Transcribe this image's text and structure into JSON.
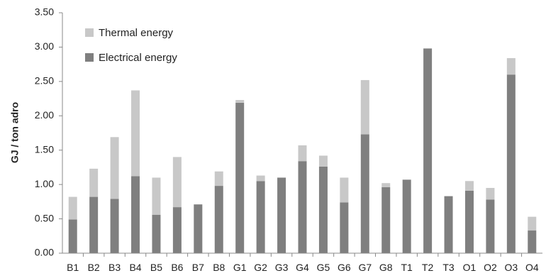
{
  "chart_data": {
    "type": "bar",
    "stacked": true,
    "categories": [
      "B1",
      "B2",
      "B3",
      "B4",
      "B5",
      "B6",
      "B7",
      "B8",
      "G1",
      "G2",
      "G3",
      "G4",
      "G5",
      "G6",
      "G7",
      "G8",
      "T1",
      "T2",
      "T3",
      "O1",
      "O2",
      "O3",
      "O4"
    ],
    "series": [
      {
        "name": "Electrical energy",
        "color": "#7f7f7f",
        "values": [
          0.49,
          0.82,
          0.79,
          1.12,
          0.56,
          0.67,
          0.71,
          0.98,
          2.19,
          1.05,
          1.1,
          1.34,
          1.26,
          0.74,
          1.73,
          0.96,
          1.07,
          2.98,
          0.83,
          0.91,
          0.78,
          2.6,
          0.33
        ]
      },
      {
        "name": "Thermal energy",
        "color": "#c8c8c8",
        "values": [
          0.33,
          0.41,
          0.9,
          1.25,
          0.54,
          0.73,
          0.0,
          0.21,
          0.04,
          0.08,
          0.0,
          0.23,
          0.16,
          0.36,
          0.79,
          0.06,
          0.0,
          0.0,
          0.0,
          0.14,
          0.17,
          0.24,
          0.2
        ]
      }
    ],
    "ylabel": "GJ / ton adro",
    "ylim": [
      0,
      3.5
    ],
    "yticks": [
      "0.00",
      "0.50",
      "1.00",
      "1.50",
      "2.00",
      "2.50",
      "3.00",
      "3.50"
    ],
    "legend": {
      "placement": "top-left",
      "entries": [
        "Thermal energy",
        "Electrical energy"
      ]
    },
    "grid": false
  }
}
